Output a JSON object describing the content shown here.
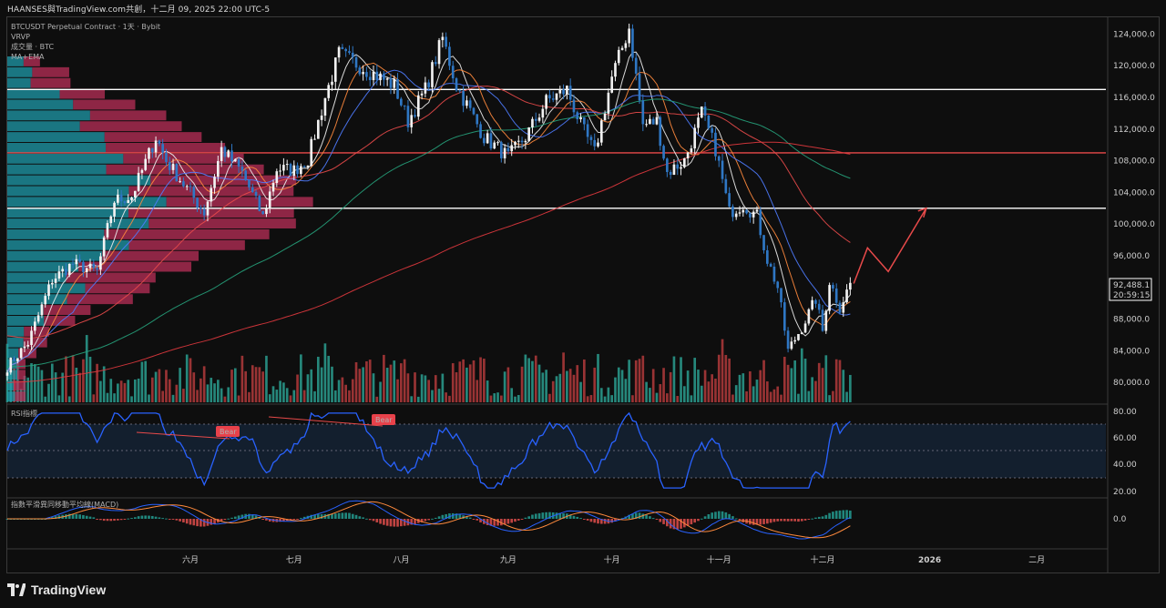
{
  "header": {
    "watermark": "HAANSES與TradingView.com共創，十二月 09, 2025 22:00 UTC-5"
  },
  "legend": {
    "symbol": "BTCUSDT Perpetual Contract · 1天 · Bybit",
    "indicator1": "VRVP",
    "indicator2": "成交量 · BTC",
    "indicator3": "MA+EMA"
  },
  "price_tag": {
    "price": "92,488.1",
    "countdown": "20:59:15"
  },
  "rsi_panel": {
    "title": "RSI指標",
    "bear_label": "Bear",
    "ticks": [
      "80.00",
      "60.00",
      "40.00",
      "20.00"
    ]
  },
  "macd_panel": {
    "title": "指數平滑異同移動平均線(MACD)",
    "ticks": [
      "0.0"
    ]
  },
  "footer": {
    "brand": "TradingView"
  },
  "colors": {
    "bg": "#0e0e0e",
    "up": "#2a9d8f",
    "down": "#b2393b",
    "candle_up": "#f2f2f2",
    "candle_down": "#2f77c4",
    "rsi": "#2962ff",
    "red_line": "#e84a4a",
    "white_line": "#ffffff"
  },
  "chart_data": {
    "type": "candlestick",
    "title": "BTCUSDT Perpetual Contract · 1天 · Bybit",
    "y_ticks": [
      "124,000.0",
      "120,000.0",
      "116,000.0",
      "112,000.0",
      "108,000.0",
      "104,000.0",
      "100,000.0",
      "96,000.0",
      "88,000.0",
      "84,000.0",
      "80,000.0"
    ],
    "y_tick_values": [
      124000,
      120000,
      116000,
      112000,
      108000,
      104000,
      100000,
      96000,
      88000,
      84000,
      80000
    ],
    "ylim": [
      77500,
      126000
    ],
    "x_labels": [
      "六月",
      "七月",
      "八月",
      "九月",
      "十月",
      "十一月",
      "十二月",
      "2026",
      "二月"
    ],
    "x_label_dates": [
      "2025-06-01",
      "2025-07-01",
      "2025-08-01",
      "2025-09-01",
      "2025-10-01",
      "2025-11-01",
      "2025-12-01",
      "2026-01-01",
      "2026-02-01"
    ],
    "x_range": [
      "2025-04-09",
      "2026-02-21"
    ],
    "current_price": 92488.1,
    "horizontal_levels": [
      {
        "price": 117000,
        "color": "#ffffff"
      },
      {
        "price": 109000,
        "color": "#e84a4a"
      },
      {
        "price": 102000,
        "color": "#ffffff"
      }
    ],
    "projection": [
      {
        "date": "2025-12-10",
        "price": 92500
      },
      {
        "date": "2025-12-14",
        "price": 97000
      },
      {
        "date": "2025-12-20",
        "price": 94000
      },
      {
        "date": "2025-12-31",
        "price": 102000
      }
    ],
    "close_series": [
      [
        "2025-04-09",
        82000
      ],
      [
        "2025-04-15",
        85000
      ],
      [
        "2025-04-22",
        93000
      ],
      [
        "2025-04-28",
        95000
      ],
      [
        "2025-05-05",
        94000
      ],
      [
        "2025-05-10",
        103000
      ],
      [
        "2025-05-15",
        103500
      ],
      [
        "2025-05-22",
        111000
      ],
      [
        "2025-05-25",
        108000
      ],
      [
        "2025-05-31",
        104500
      ],
      [
        "2025-06-05",
        101500
      ],
      [
        "2025-06-10",
        109500
      ],
      [
        "2025-06-16",
        106500
      ],
      [
        "2025-06-22",
        100900
      ],
      [
        "2025-06-26",
        107000
      ],
      [
        "2025-07-01",
        106800
      ],
      [
        "2025-07-05",
        108200
      ],
      [
        "2025-07-10",
        116000
      ],
      [
        "2025-07-14",
        121500
      ],
      [
        "2025-07-22",
        119500
      ],
      [
        "2025-07-30",
        117500
      ],
      [
        "2025-08-03",
        113000
      ],
      [
        "2025-08-08",
        117000
      ],
      [
        "2025-08-13",
        123500
      ],
      [
        "2025-08-17",
        117500
      ],
      [
        "2025-08-25",
        111000
      ],
      [
        "2025-09-01",
        108500
      ],
      [
        "2025-09-06",
        111000
      ],
      [
        "2025-09-12",
        115500
      ],
      [
        "2025-09-18",
        117000
      ],
      [
        "2025-09-22",
        112500
      ],
      [
        "2025-09-26",
        109000
      ],
      [
        "2025-10-01",
        118500
      ],
      [
        "2025-10-06",
        124800
      ],
      [
        "2025-10-10",
        112500
      ],
      [
        "2025-10-14",
        113000
      ],
      [
        "2025-10-17",
        106500
      ],
      [
        "2025-10-22",
        108000
      ],
      [
        "2025-10-27",
        114000
      ],
      [
        "2025-10-31",
        109500
      ],
      [
        "2025-11-04",
        101500
      ],
      [
        "2025-11-08",
        102500
      ],
      [
        "2025-11-12",
        101000
      ],
      [
        "2025-11-15",
        95500
      ],
      [
        "2025-11-18",
        92000
      ],
      [
        "2025-11-21",
        84000
      ],
      [
        "2025-11-25",
        87000
      ],
      [
        "2025-11-29",
        90500
      ],
      [
        "2025-12-01",
        86500
      ],
      [
        "2025-12-03",
        92800
      ],
      [
        "2025-12-06",
        89500
      ],
      [
        "2025-12-09",
        92488
      ]
    ],
    "series": [
      {
        "name": "MA fast",
        "color": "#f0f0f0"
      },
      {
        "name": "EMA fast",
        "color": "#ff8a3d"
      },
      {
        "name": "MA 20",
        "color": "#4f7cff"
      },
      {
        "name": "MA 50",
        "color": "#e84a4a"
      },
      {
        "name": "MA 100",
        "color": "#26a17b"
      },
      {
        "name": "MA 200",
        "color": "#e0393e"
      }
    ]
  }
}
